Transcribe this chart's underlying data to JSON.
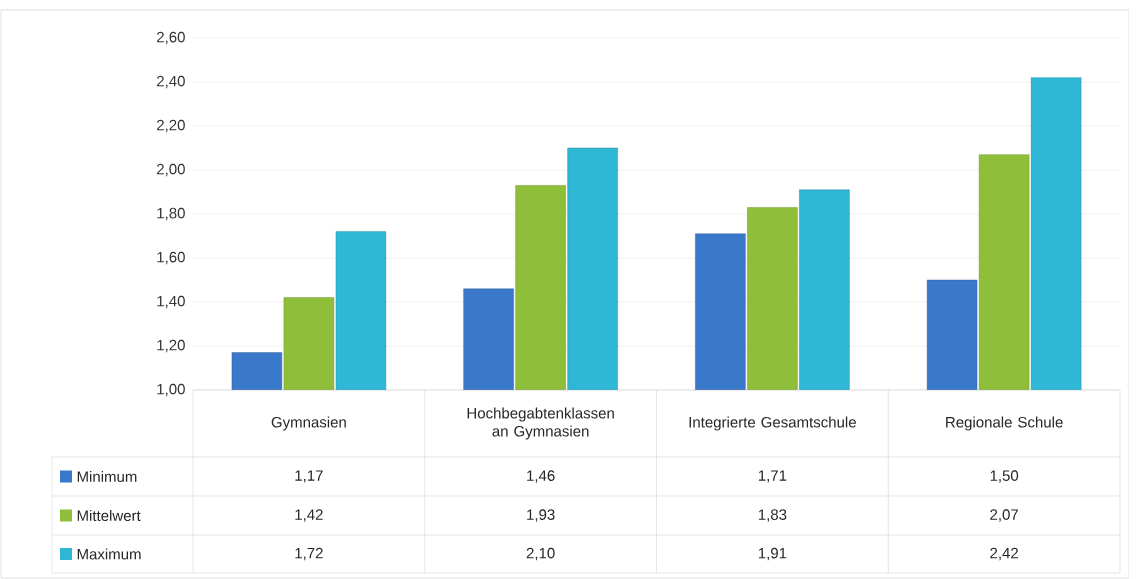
{
  "chart_data": {
    "type": "bar",
    "categories": [
      "Gymnasien",
      "Hochbegabtenklassen an Gymnasien",
      "Integrierte Gesamtschule",
      "Regionale Schule"
    ],
    "series": [
      {
        "name": "Minimum",
        "color": "#3a78c9",
        "values": [
          1.17,
          1.46,
          1.71,
          1.5
        ],
        "value_labels": [
          "1,17",
          "1,46",
          "1,71",
          "1,50"
        ]
      },
      {
        "name": "Mittelwert",
        "color": "#8fbf3a",
        "values": [
          1.42,
          1.93,
          1.83,
          2.07
        ],
        "value_labels": [
          "1,42",
          "1,93",
          "1,83",
          "2,07"
        ]
      },
      {
        "name": "Maximum",
        "color": "#2fb7d6",
        "values": [
          1.72,
          2.1,
          1.91,
          2.42
        ],
        "value_labels": [
          "1,72",
          "2,10",
          "1,91",
          "2,42"
        ]
      }
    ],
    "ylim": [
      1.0,
      2.6
    ],
    "yticks": [
      {
        "value": 1.0,
        "label": "1,00"
      },
      {
        "value": 1.2,
        "label": "1,20"
      },
      {
        "value": 1.4,
        "label": "1,40"
      },
      {
        "value": 1.6,
        "label": "1,60"
      },
      {
        "value": 1.8,
        "label": "1,80"
      },
      {
        "value": 2.0,
        "label": "2,00"
      },
      {
        "value": 2.2,
        "label": "2,20"
      },
      {
        "value": 2.4,
        "label": "2,40"
      },
      {
        "value": 2.6,
        "label": "2,60"
      }
    ],
    "grid": "y",
    "legend": "bottom"
  }
}
